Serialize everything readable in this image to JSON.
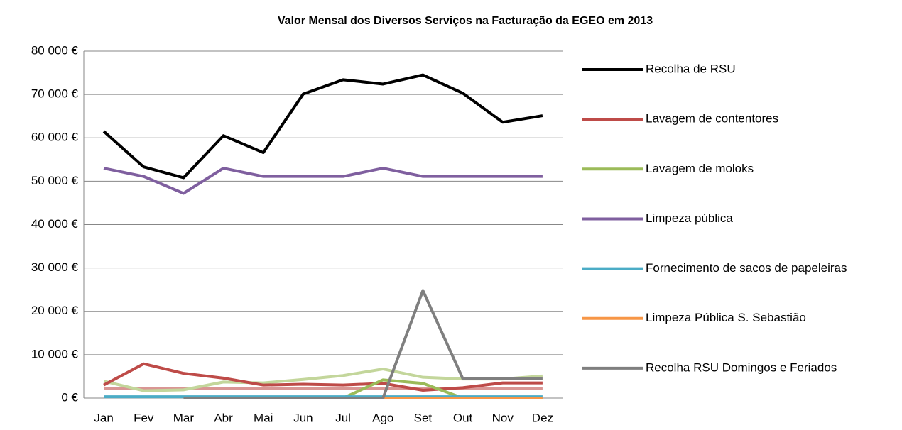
{
  "chart_data": {
    "type": "line",
    "title": "Valor Mensal dos Diversos Serviços na Facturação da EGEO em 2013",
    "categories": [
      "Jan",
      "Fev",
      "Mar",
      "Abr",
      "Mai",
      "Jun",
      "Jul",
      "Ago",
      "Set",
      "Out",
      "Nov",
      "Dez"
    ],
    "ylim": [
      0,
      80000
    ],
    "yticks": [
      {
        "value": 0,
        "label": "0 €"
      },
      {
        "value": 10000,
        "label": "10 000 €"
      },
      {
        "value": 20000,
        "label": "20 000 €"
      },
      {
        "value": 30000,
        "label": "30 000 €"
      },
      {
        "value": 40000,
        "label": "40 000 €"
      },
      {
        "value": 50000,
        "label": "50 000 €"
      },
      {
        "value": 60000,
        "label": "60 000 €"
      },
      {
        "value": 70000,
        "label": "70 000 €"
      },
      {
        "value": 80000,
        "label": "80 000 €"
      }
    ],
    "grid": true,
    "legend": "right",
    "series": [
      {
        "color": "#d99694",
        "values": [
          2300,
          2300,
          2300,
          2300,
          2300,
          2300,
          2300,
          2300,
          2300,
          2300,
          2300,
          2300
        ]
      },
      {
        "color": "#c3d69b",
        "values": [
          3900,
          1700,
          1900,
          3700,
          3500,
          4300,
          5200,
          6700,
          4800,
          4400,
          4400,
          5100
        ]
      },
      {
        "name": "Recolha de RSU",
        "color": "#000000",
        "values": [
          61500,
          53300,
          50800,
          60500,
          56600,
          70100,
          73400,
          72400,
          74500,
          70300,
          63600,
          65100
        ]
      },
      {
        "name": "Lavagem de contentores",
        "color": "#be4b48",
        "values": [
          3000,
          7900,
          5700,
          4600,
          3000,
          3200,
          3000,
          3400,
          1800,
          2400,
          3500,
          3500
        ]
      },
      {
        "name": "Lavagem de moloks",
        "color": "#9bbb59",
        "values": [
          null,
          null,
          null,
          null,
          null,
          null,
          0,
          4200,
          3400,
          0,
          0,
          0
        ]
      },
      {
        "name": "Limpeza pública",
        "color": "#7f5f9f",
        "values": [
          53000,
          51100,
          47200,
          53000,
          51100,
          51100,
          51100,
          53000,
          51100,
          51100,
          51100,
          51100
        ]
      },
      {
        "name": "Fornecimento de sacos de papeleiras",
        "color": "#4bacc6",
        "values": [
          300,
          300,
          300,
          300,
          300,
          300,
          300,
          300,
          300,
          300,
          300,
          300
        ]
      },
      {
        "name": "Limpeza Pública S. Sebastião",
        "color": "#f79646",
        "values": [
          null,
          null,
          null,
          null,
          null,
          null,
          null,
          0,
          0,
          0,
          0,
          0
        ]
      },
      {
        "name": "Recolha RSU Domingos e Feriados",
        "color": "#7f7f7f",
        "values": [
          null,
          null,
          0,
          0,
          0,
          0,
          0,
          0,
          24800,
          4500,
          4500,
          4500
        ]
      }
    ]
  }
}
